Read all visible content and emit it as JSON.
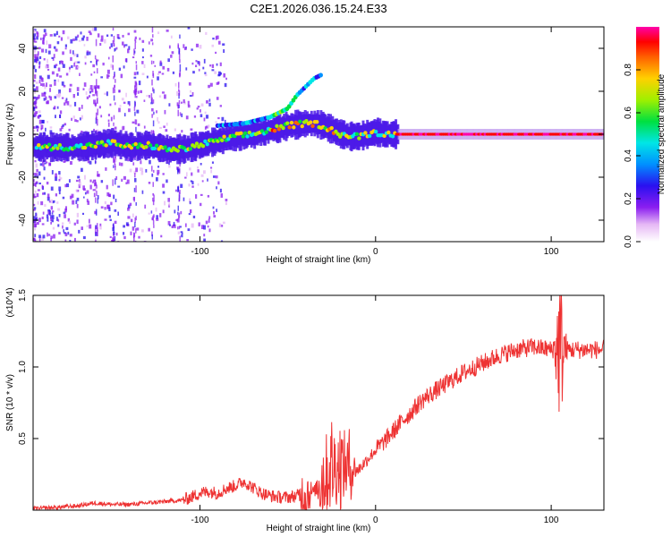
{
  "title": "C2E1.2026.036.15.24.E33",
  "chart_data": [
    {
      "type": "heatmap",
      "name": "spectrogram",
      "xlabel": "Height of straight line (km)",
      "ylabel": "Frequency (Hz)",
      "xlim": [
        -195,
        130
      ],
      "ylim": [
        -50,
        50
      ],
      "xticks": [
        -100,
        0,
        100
      ],
      "yticks": [
        -40,
        -20,
        0,
        20,
        40
      ],
      "xtick_labels": [
        "-100",
        "0",
        "100"
      ],
      "ytick_labels": [
        "-40",
        "-20",
        "0",
        "20",
        "40"
      ],
      "ridge": {
        "x": [
          -195,
          -170,
          -160,
          -150,
          -140,
          -130,
          -120,
          -110,
          -100,
          -90,
          -80,
          -70,
          -60,
          -50,
          -40,
          -35,
          -30,
          -25,
          -20,
          -15,
          -10,
          -5,
          0,
          5,
          10,
          20,
          40,
          60,
          80,
          100,
          130
        ],
        "y": [
          -6,
          -6,
          -5,
          -4,
          -6,
          -5,
          -7,
          -7,
          -5,
          -3,
          -1,
          0,
          2,
          4,
          5,
          5,
          4,
          2,
          0,
          -1,
          -1,
          0,
          1,
          0,
          0,
          0,
          0,
          0,
          0,
          0,
          0
        ]
      },
      "upper_branch": {
        "x": [
          -90,
          -75,
          -60,
          -50,
          -45,
          -40,
          -35,
          -30
        ],
        "y": [
          4,
          5,
          8,
          12,
          18,
          22,
          26,
          28
        ]
      },
      "colorbar": {
        "label": "Normalized spectral amplitude",
        "range": [
          0.0,
          1.0
        ],
        "ticks": [
          0.0,
          0.2,
          0.4,
          0.6,
          0.8
        ],
        "tick_labels": [
          "0.0",
          "0.2",
          "0.4",
          "0.6",
          "0.8"
        ]
      }
    },
    {
      "type": "line",
      "name": "snr",
      "xlabel": "Height of straight line (km)",
      "ylabel": "SNR (10 * v/v)",
      "y_multiplier": "(x10^4)",
      "xlim": [
        -195,
        130
      ],
      "ylim": [
        0,
        1.5
      ],
      "xticks": [
        -100,
        0,
        100
      ],
      "yticks": [
        0.5,
        1.0,
        1.5
      ],
      "xtick_labels": [
        "-100",
        "0",
        "100"
      ],
      "ytick_labels": [
        "0.5",
        "1.0",
        "1.5"
      ],
      "color": "#ee3333",
      "series": [
        {
          "name": "SNR",
          "x": [
            -195,
            -180,
            -170,
            -160,
            -150,
            -140,
            -130,
            -120,
            -110,
            -105,
            -100,
            -95,
            -90,
            -85,
            -80,
            -75,
            -70,
            -65,
            -60,
            -55,
            -50,
            -45,
            -40,
            -35,
            -30,
            -25,
            -20,
            -15,
            -10,
            -5,
            0,
            5,
            10,
            15,
            20,
            25,
            30,
            35,
            40,
            45,
            50,
            55,
            60,
            65,
            70,
            75,
            80,
            85,
            90,
            95,
            100,
            104,
            106,
            110,
            120,
            130
          ],
          "y": [
            0.01,
            0.02,
            0.03,
            0.05,
            0.04,
            0.04,
            0.05,
            0.06,
            0.07,
            0.09,
            0.12,
            0.13,
            0.12,
            0.15,
            0.17,
            0.2,
            0.16,
            0.12,
            0.1,
            0.09,
            0.09,
            0.1,
            0.12,
            0.13,
            0.22,
            0.3,
            0.32,
            0.3,
            0.28,
            0.35,
            0.42,
            0.48,
            0.55,
            0.62,
            0.68,
            0.75,
            0.8,
            0.84,
            0.88,
            0.92,
            0.96,
            0.99,
            1.02,
            1.05,
            1.08,
            1.1,
            1.12,
            1.13,
            1.14,
            1.13,
            1.12,
            1.13,
            1.12,
            1.12,
            1.12,
            1.12
          ]
        }
      ],
      "noise_bursts": [
        {
          "x": -40,
          "amp": 0.3
        },
        {
          "x": -30,
          "amp": 0.45
        },
        {
          "x": -25,
          "amp": 0.5
        },
        {
          "x": -20,
          "amp": 0.42
        },
        {
          "x": -15,
          "amp": 0.35
        },
        {
          "x": 105,
          "amp": 0.5
        }
      ]
    }
  ]
}
